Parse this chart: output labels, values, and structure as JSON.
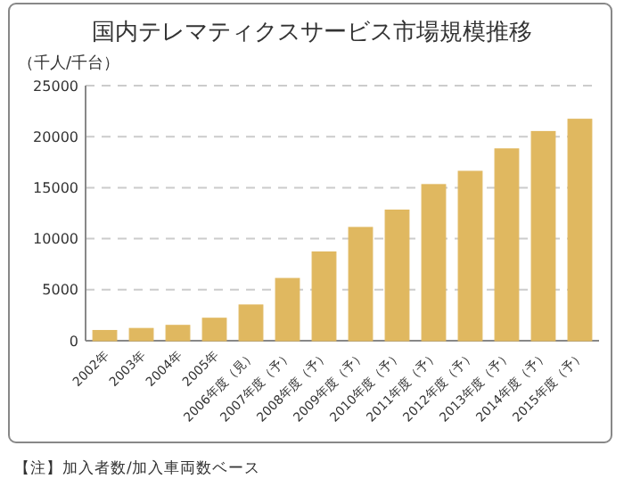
{
  "chart_data": {
    "type": "bar",
    "title": "国内テレマティクスサービス市場規模推移",
    "ylabel": "（千人/千台）",
    "categories": [
      "2002年",
      "2003年",
      "2004年",
      "2005年",
      "2006年度（見）",
      "2007年度（予）",
      "2008年度（予）",
      "2009年度（予）",
      "2010年度（予）",
      "2011年度（予）",
      "2012年度（予）",
      "2013年度（予）",
      "2014年度（予）",
      "2015年度（予）"
    ],
    "values": [
      1000,
      1200,
      1500,
      2200,
      3500,
      6100,
      8700,
      11100,
      12800,
      15300,
      16600,
      18800,
      20500,
      21700
    ],
    "color": "#e0b860",
    "ylim": [
      0,
      25000
    ],
    "yticks": [
      0,
      5000,
      10000,
      15000,
      20000,
      25000
    ],
    "grid": "y",
    "annotations": [
      "【注】加入者数/加入車両数ベース"
    ]
  }
}
